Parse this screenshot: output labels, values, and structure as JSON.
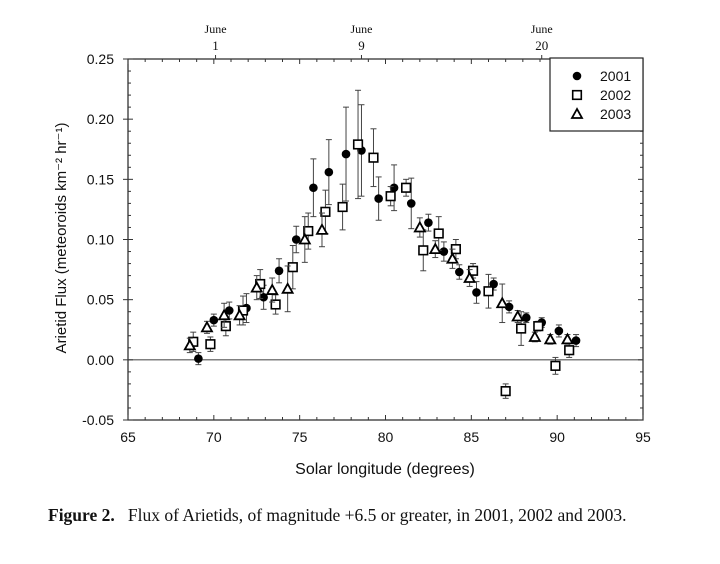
{
  "chart_data": {
    "type": "scatter",
    "xlabel": "Solar longitude (degrees)",
    "ylabel": "Arietid Flux (meteoroids km⁻² hr⁻¹)",
    "xlim": [
      65,
      95
    ],
    "ylim": [
      -0.05,
      0.25
    ],
    "xticks": [
      "65",
      "70",
      "75",
      "80",
      "85",
      "90",
      "95"
    ],
    "yticks": [
      "-0.05",
      "0.00",
      "0.05",
      "0.10",
      "0.15",
      "0.20",
      "0.25"
    ],
    "grid": false,
    "zero_line": true,
    "legend_placement": "top-right",
    "top_axis": [
      {
        "month": "June",
        "day": "1",
        "x": 70.1
      },
      {
        "month": "June",
        "day": "9",
        "x": 78.6
      },
      {
        "month": "June",
        "day": "20",
        "x": 89.1
      }
    ],
    "series": [
      {
        "name": "2001",
        "marker": "filled-circle",
        "color": "#000000",
        "points": [
          [
            69.1,
            0.001,
            0.005
          ],
          [
            70.0,
            0.033,
            0.005
          ],
          [
            70.9,
            0.041,
            0.007
          ],
          [
            71.9,
            0.043,
            0.012
          ],
          [
            72.9,
            0.052,
            0.01
          ],
          [
            73.8,
            0.074,
            0.01
          ],
          [
            74.8,
            0.1,
            0.011
          ],
          [
            75.8,
            0.143,
            0.024
          ],
          [
            76.7,
            0.156,
            0.027
          ],
          [
            77.7,
            0.171,
            0.039
          ],
          [
            78.6,
            0.174,
            0.038
          ],
          [
            79.6,
            0.134,
            0.018
          ],
          [
            80.5,
            0.143,
            0.019
          ],
          [
            81.5,
            0.13,
            0.021
          ],
          [
            82.5,
            0.114,
            0.007
          ],
          [
            83.4,
            0.09,
            0.008
          ],
          [
            84.3,
            0.073,
            0.006
          ],
          [
            85.3,
            0.056,
            0.009
          ],
          [
            86.3,
            0.063,
            0.005
          ],
          [
            87.2,
            0.044,
            0.005
          ],
          [
            88.2,
            0.035,
            0.004
          ],
          [
            89.1,
            0.031,
            0.004
          ],
          [
            90.1,
            0.024,
            0.005
          ],
          [
            91.1,
            0.016,
            0.005
          ]
        ]
      },
      {
        "name": "2002",
        "marker": "open-square",
        "color": "#000000",
        "points": [
          [
            68.8,
            0.015,
            0.008
          ],
          [
            69.8,
            0.013,
            0.006
          ],
          [
            70.7,
            0.028,
            0.008
          ],
          [
            71.7,
            0.041,
            0.012
          ],
          [
            72.7,
            0.063,
            0.012
          ],
          [
            73.6,
            0.046,
            0.008
          ],
          [
            74.6,
            0.077,
            0.018
          ],
          [
            75.5,
            0.107,
            0.015
          ],
          [
            76.5,
            0.123,
            0.018
          ],
          [
            77.5,
            0.127,
            0.019
          ],
          [
            78.4,
            0.179,
            0.045
          ],
          [
            79.3,
            0.168,
            0.024
          ],
          [
            80.3,
            0.136,
            0.008
          ],
          [
            81.2,
            0.143,
            0.007
          ],
          [
            82.2,
            0.091,
            0.017
          ],
          [
            83.1,
            0.105,
            0.014
          ],
          [
            84.1,
            0.092,
            0.008
          ],
          [
            85.1,
            0.074,
            0.006
          ],
          [
            86.0,
            0.057,
            0.014
          ],
          [
            87.0,
            -0.026,
            0.006
          ],
          [
            87.9,
            0.026,
            0.014
          ],
          [
            88.9,
            0.028,
            0.004
          ],
          [
            89.9,
            -0.005,
            0.007
          ],
          [
            90.7,
            0.008,
            0.006
          ]
        ]
      },
      {
        "name": "2003",
        "marker": "open-triangle",
        "color": "#000000",
        "points": [
          [
            68.6,
            0.012,
            0.006
          ],
          [
            69.6,
            0.027,
            0.005
          ],
          [
            70.6,
            0.037,
            0.01
          ],
          [
            71.5,
            0.037,
            0.008
          ],
          [
            72.5,
            0.06,
            0.01
          ],
          [
            73.4,
            0.058,
            0.01
          ],
          [
            74.3,
            0.059,
            0.019
          ],
          [
            75.3,
            0.1,
            0.019
          ],
          [
            76.3,
            0.108,
            0.014
          ],
          [
            82.0,
            0.11,
            0.008
          ],
          [
            82.9,
            0.092,
            0.007
          ],
          [
            83.9,
            0.084,
            0.008
          ],
          [
            84.9,
            0.068,
            0.007
          ],
          [
            86.8,
            0.047,
            0.016
          ],
          [
            87.7,
            0.036,
            0.005
          ],
          [
            88.7,
            0.019,
            0.004
          ],
          [
            89.6,
            0.017,
            0.004
          ],
          [
            90.6,
            0.017,
            0.004
          ]
        ]
      }
    ]
  },
  "caption": {
    "label": "Figure 2.",
    "text": "Flux of Arietids, of magnitude +6.5 or greater, in 2001, 2002 and 2003."
  }
}
